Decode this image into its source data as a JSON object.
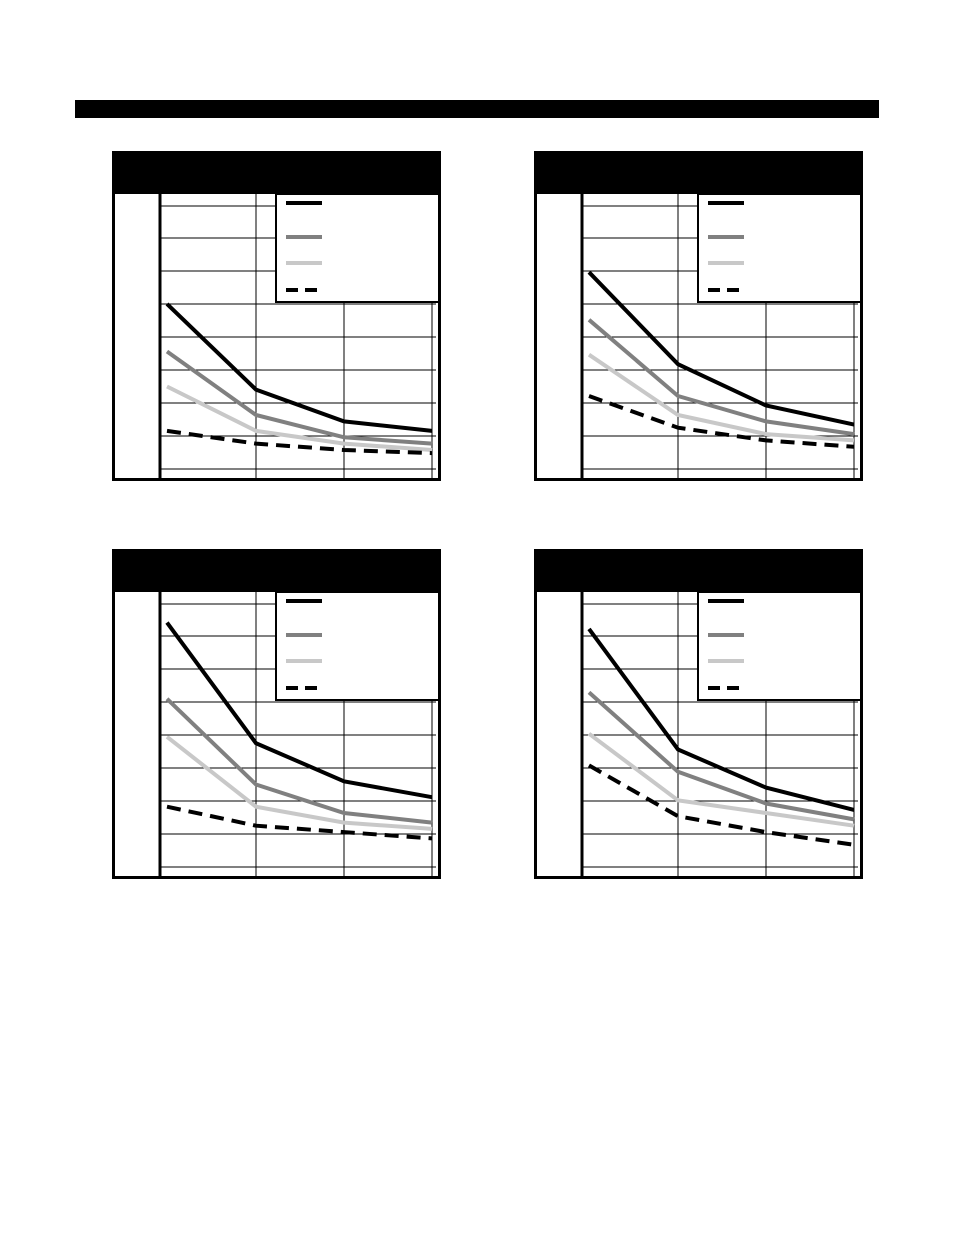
{
  "colors": {
    "series_1": "#000000",
    "series_2": "#808080",
    "series_3": "#c8c8c8",
    "series_4": "#000000",
    "header": "#000000",
    "grid": "#000000",
    "background": "#ffffff"
  },
  "chart_data": [
    {
      "type": "line",
      "x": [
        0,
        1,
        2,
        3
      ],
      "ylim": [
        0,
        8.6
      ],
      "grid": true,
      "legend": "top-right",
      "series": [
        {
          "style": "solid-black",
          "values": [
            5.2,
            2.5,
            1.5,
            1.2
          ]
        },
        {
          "style": "solid-gray",
          "values": [
            3.7,
            1.7,
            1.0,
            0.8
          ]
        },
        {
          "style": "solid-lightgray",
          "values": [
            2.6,
            1.2,
            0.8,
            0.6
          ]
        },
        {
          "style": "dashed-black",
          "values": [
            1.2,
            0.8,
            0.6,
            0.5
          ]
        }
      ]
    },
    {
      "type": "line",
      "x": [
        0,
        1,
        2,
        3
      ],
      "ylim": [
        0,
        8.6
      ],
      "grid": true,
      "legend": "top-right",
      "series": [
        {
          "style": "solid-black",
          "values": [
            6.2,
            3.3,
            2.0,
            1.4
          ]
        },
        {
          "style": "solid-gray",
          "values": [
            4.7,
            2.3,
            1.5,
            1.1
          ]
        },
        {
          "style": "solid-lightgray",
          "values": [
            3.6,
            1.7,
            1.1,
            0.9
          ]
        },
        {
          "style": "dashed-black",
          "values": [
            2.3,
            1.3,
            0.9,
            0.7
          ]
        }
      ]
    },
    {
      "type": "line",
      "x": [
        0,
        1,
        2,
        3
      ],
      "ylim": [
        0,
        8.6
      ],
      "grid": true,
      "legend": "top-right",
      "series": [
        {
          "style": "solid-black",
          "values": [
            7.7,
            3.9,
            2.7,
            2.2
          ]
        },
        {
          "style": "solid-gray",
          "values": [
            5.3,
            2.6,
            1.7,
            1.4
          ]
        },
        {
          "style": "solid-lightgray",
          "values": [
            4.1,
            1.9,
            1.4,
            1.2
          ]
        },
        {
          "style": "dashed-black",
          "values": [
            1.9,
            1.3,
            1.1,
            0.9
          ]
        }
      ]
    },
    {
      "type": "line",
      "x": [
        0,
        1,
        2,
        3
      ],
      "ylim": [
        0,
        8.6
      ],
      "grid": true,
      "legend": "top-right",
      "series": [
        {
          "style": "solid-black",
          "values": [
            7.5,
            3.7,
            2.5,
            1.8
          ]
        },
        {
          "style": "solid-gray",
          "values": [
            5.5,
            3.0,
            2.0,
            1.5
          ]
        },
        {
          "style": "solid-lightgray",
          "values": [
            4.2,
            2.1,
            1.7,
            1.3
          ]
        },
        {
          "style": "dashed-black",
          "values": [
            3.2,
            1.6,
            1.1,
            0.7
          ]
        }
      ]
    }
  ]
}
